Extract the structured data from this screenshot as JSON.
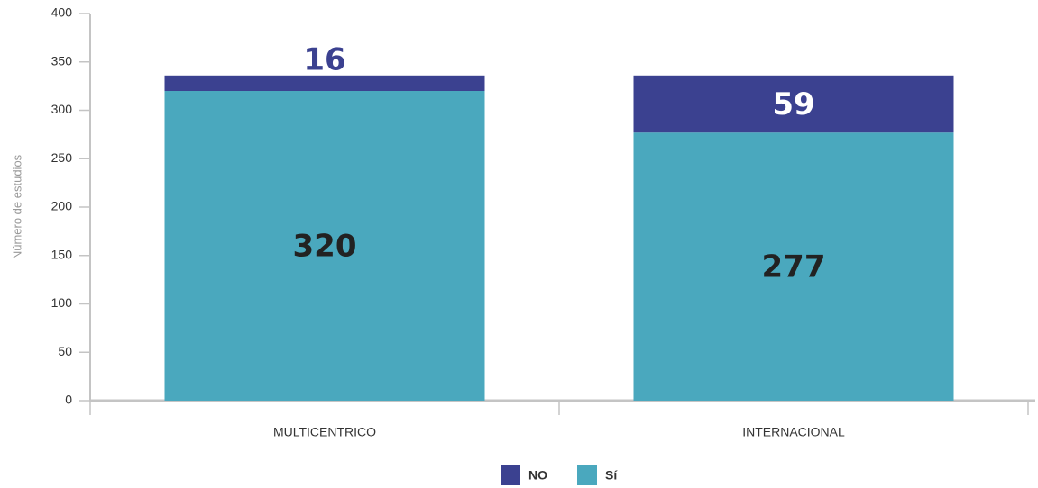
{
  "chart_data": {
    "type": "stacked_bar",
    "y_label": "Número de estudios",
    "categories": [
      "MULTICENTRICO",
      "INTERNACIONAL"
    ],
    "series": [
      {
        "name": "Sí",
        "color": "#4aa8be",
        "values": [
          320,
          277
        ]
      },
      {
        "name": "NO",
        "color": "#3b4190",
        "values": [
          16,
          59
        ]
      }
    ],
    "legend_order": [
      "NO",
      "Sí"
    ],
    "ylim": [
      0,
      400
    ],
    "yticks": [
      0,
      50,
      100,
      150,
      200,
      250,
      300,
      350,
      400
    ],
    "legend": "bottom"
  }
}
